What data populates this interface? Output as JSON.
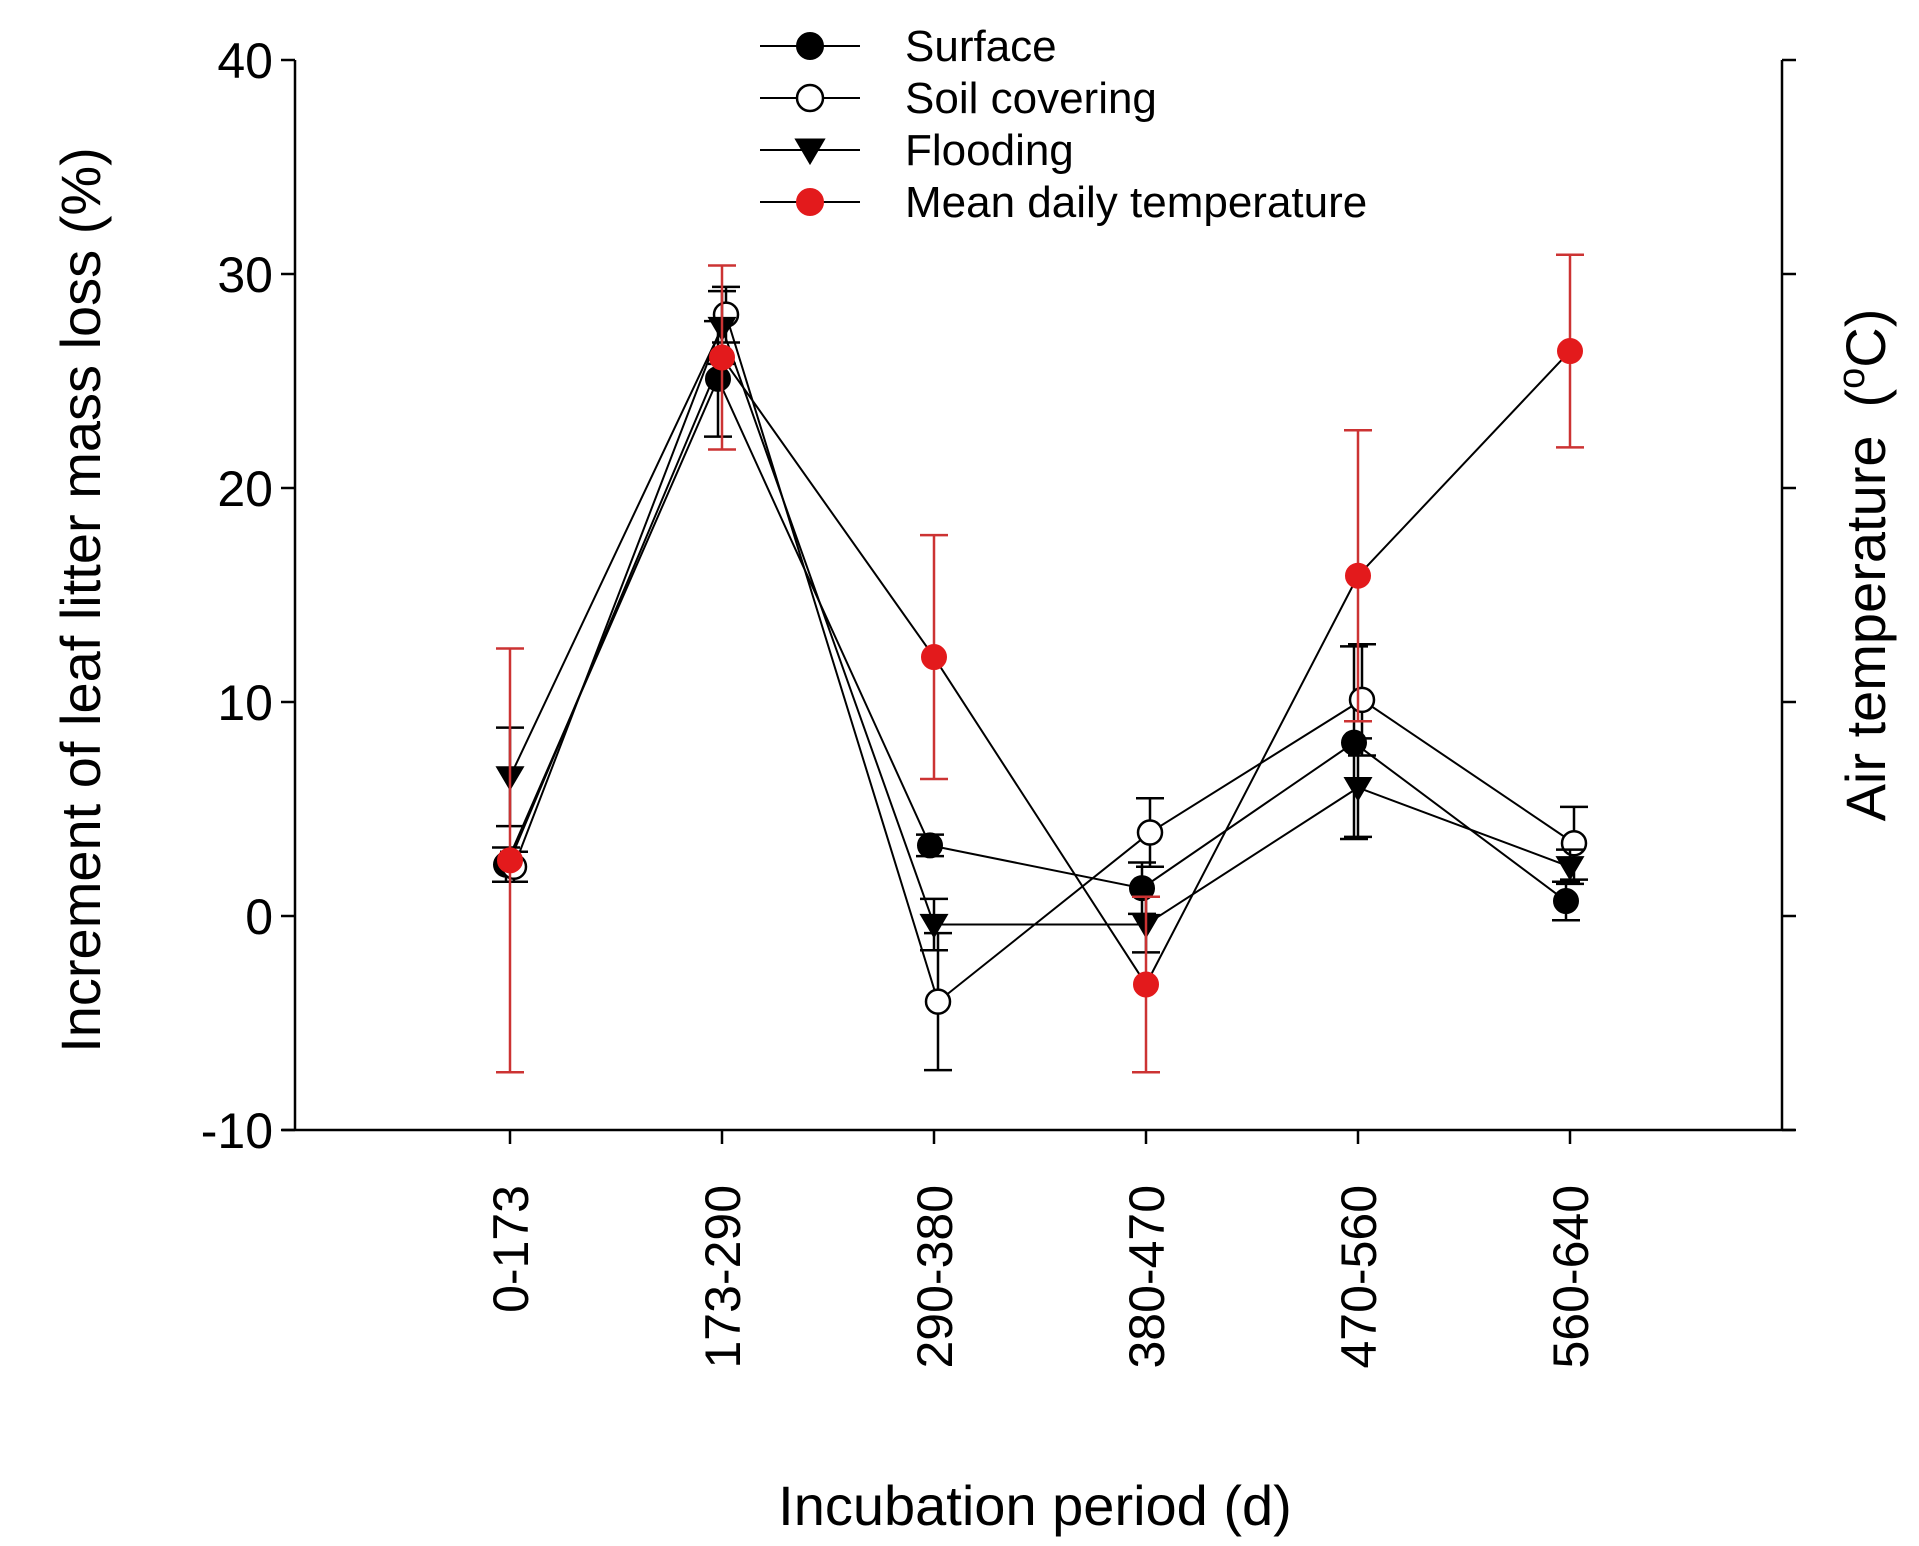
{
  "chart_data": {
    "type": "line",
    "title": "",
    "xlabel": "Incubation period (d)",
    "ylabel": "Increment of leaf litter mass loss (%)",
    "y2label_main": "Air temperature",
    "y2label_unit": "(oC)",
    "y2label_sup": "o",
    "y2label_unit_letter": "C",
    "y2label_open": "(",
    "y2label_close": ")",
    "categories": [
      "0-173",
      "173-290",
      "290-380",
      "380-470",
      "470-560",
      "560-640"
    ],
    "ylim": [
      -10,
      40
    ],
    "yticks": [
      -10,
      0,
      10,
      20,
      30,
      40
    ],
    "ytick_labels": [
      "-10",
      "0",
      "10",
      "20",
      "30",
      "40"
    ],
    "grid": false,
    "legend_position": "top-center",
    "series": [
      {
        "name": "Surface",
        "marker": "filled-circle",
        "color": "#000000",
        "values": [
          2.4,
          25.1,
          3.3,
          1.3,
          8.1,
          0.7
        ],
        "errors": [
          0.8,
          2.7,
          0.5,
          1.2,
          4.5,
          0.9
        ]
      },
      {
        "name": "Soil covering",
        "marker": "open-circle",
        "color": "#000000",
        "values": [
          2.3,
          28.1,
          -4.0,
          3.9,
          10.1,
          3.4
        ],
        "errors": [
          0.7,
          1.3,
          3.2,
          1.6,
          2.6,
          1.7
        ]
      },
      {
        "name": "Flooding",
        "marker": "filled-triangle-down",
        "color": "#000000",
        "values": [
          6.5,
          27.5,
          -0.4,
          -0.4,
          6.0,
          2.3
        ],
        "errors": [
          2.3,
          1.7,
          1.2,
          1.3,
          2.3,
          0.8
        ]
      },
      {
        "name": "Mean daily temperature",
        "marker": "filled-circle",
        "color": "#e31a1c",
        "error_color": "#cc3333",
        "values": [
          2.6,
          26.1,
          12.1,
          -3.2,
          15.9,
          26.4
        ],
        "errors": [
          9.9,
          4.3,
          5.7,
          4.1,
          6.8,
          4.5
        ]
      }
    ]
  }
}
